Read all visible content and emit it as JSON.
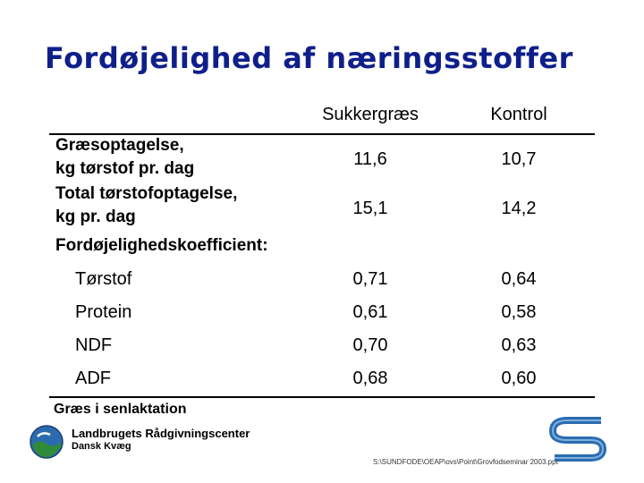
{
  "title": "Fordøjelighed af næringsstoffer",
  "columns": [
    "Sukkergræs",
    "Kontrol"
  ],
  "rows": [
    {
      "label_line1": "Græsoptagelse,",
      "label_line2": "kg tørstof pr. dag",
      "values": [
        "11,6",
        "10,7"
      ]
    },
    {
      "label_line1": "Total tørstofoptagelse,",
      "label_line2": "kg pr. dag",
      "values": [
        "15,1",
        "14,2"
      ]
    }
  ],
  "section_label": "Fordøjelighedskoefficient:",
  "sub_rows": [
    {
      "label": "Tørstof",
      "values": [
        "0,71",
        "0,64"
      ]
    },
    {
      "label": "Protein",
      "values": [
        "0,61",
        "0,58"
      ]
    },
    {
      "label": "NDF",
      "values": [
        "0,70",
        "0,63"
      ]
    },
    {
      "label": "ADF",
      "values": [
        "0,68",
        "0,60"
      ]
    }
  ],
  "footnote": "Græs i senlaktation",
  "organization": "Landbrugets Rådgivningscenter",
  "organization_sub": "Dansk Kvæg",
  "file_path": "S:\\SUNDFODE\\OEAP\\ovs\\Point\\Grovfodseminar 2003.ppt",
  "colors": {
    "title": "#0f1f8a",
    "logo_blue": "#2b6cb0",
    "logo_green": "#2f8a3a"
  }
}
